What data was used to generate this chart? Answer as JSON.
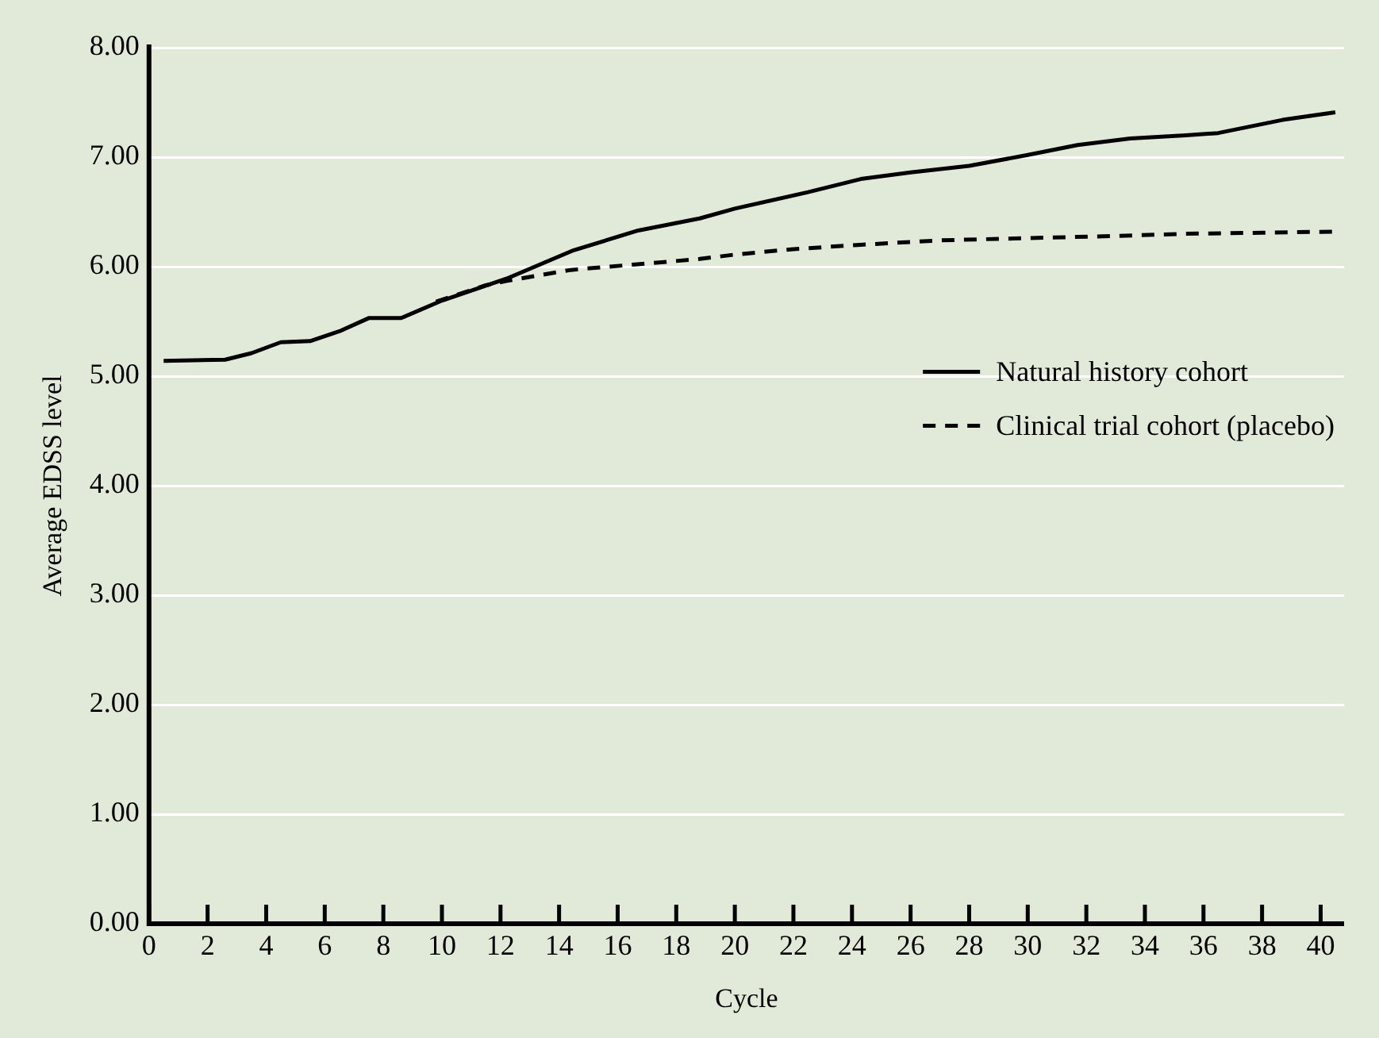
{
  "chart_data": {
    "type": "line",
    "xlabel": "Cycle",
    "ylabel": "Average EDSS level",
    "xlim": [
      0,
      40.8
    ],
    "xticks": [
      0,
      2,
      4,
      6,
      8,
      10,
      12,
      14,
      16,
      18,
      20,
      22,
      24,
      26,
      28,
      30,
      32,
      34,
      36,
      38,
      40
    ],
    "ylim": [
      0,
      8
    ],
    "yticks": [
      {
        "value": 0,
        "label": "0.00"
      },
      {
        "value": 1,
        "label": "1.00"
      },
      {
        "value": 2,
        "label": "2.00"
      },
      {
        "value": 3,
        "label": "3.00"
      },
      {
        "value": 4,
        "label": "4.00"
      },
      {
        "value": 5,
        "label": "5.00"
      },
      {
        "value": 6,
        "label": "6.00"
      },
      {
        "value": 7,
        "label": "7.00"
      },
      {
        "value": 8,
        "label": "8.00"
      }
    ],
    "grid": "y",
    "legend": "right",
    "marker": "none",
    "series": [
      {
        "name": "Natural history cohort",
        "color": "#000000",
        "line_style": "solid",
        "x": [
          0.5,
          2.6,
          3.5,
          4.5,
          5.5,
          6.5,
          7.5,
          8.6,
          10,
          12.2,
          14.5,
          16.7,
          18.8,
          20,
          22.5,
          24.3,
          26,
          28,
          30,
          31.7,
          33.5,
          35.4,
          36.5,
          38.7,
          40.5
        ],
        "values": [
          5.14,
          5.15,
          5.21,
          5.31,
          5.32,
          5.41,
          5.53,
          5.53,
          5.69,
          5.89,
          6.15,
          6.33,
          6.44,
          6.53,
          6.68,
          6.8,
          6.86,
          6.92,
          7.02,
          7.11,
          7.17,
          7.2,
          7.22,
          7.34,
          7.41
        ]
      },
      {
        "name": "Clinical trial cohort (placebo)",
        "color": "#000000",
        "line_style": "dashed",
        "x": [
          9.8,
          11.5,
          12.2,
          14.4,
          16.6,
          18.8,
          20,
          22,
          24.3,
          27,
          29.9,
          33,
          35.4,
          38,
          40.5
        ],
        "values": [
          5.68,
          5.83,
          5.87,
          5.97,
          6.02,
          6.07,
          6.11,
          6.16,
          6.2,
          6.24,
          6.26,
          6.28,
          6.3,
          6.31,
          6.32
        ]
      }
    ]
  }
}
